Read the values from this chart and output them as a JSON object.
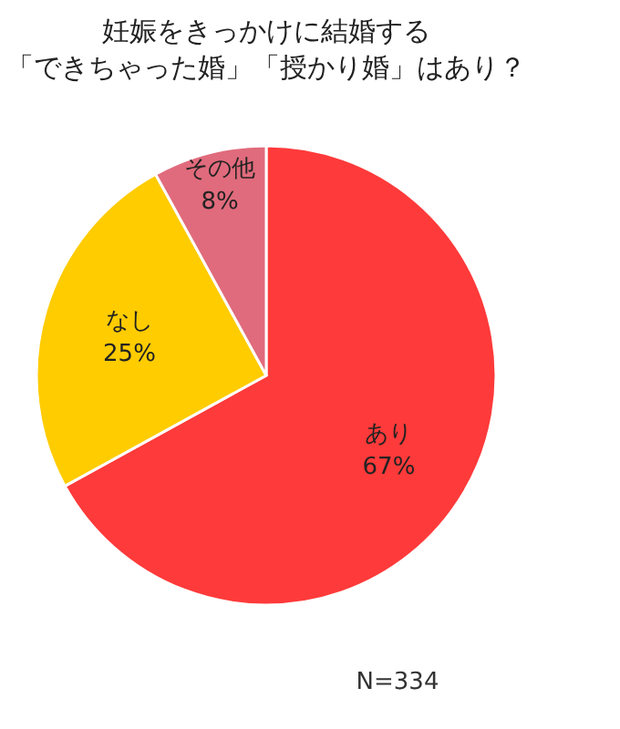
{
  "chart_data": {
    "type": "pie",
    "title": "妊娠をきっかけに結婚する",
    "subtitle": "「できちゃった婚」「授かり婚」はあり？",
    "categories": [
      "あり",
      "なし",
      "その他"
    ],
    "values": [
      67,
      25,
      8
    ],
    "value_labels": [
      "67%",
      "25%",
      "8%"
    ],
    "colors": [
      "#fe3a3a",
      "#ffcc00",
      "#e06b7c"
    ],
    "annotations": [
      "N=334"
    ]
  }
}
